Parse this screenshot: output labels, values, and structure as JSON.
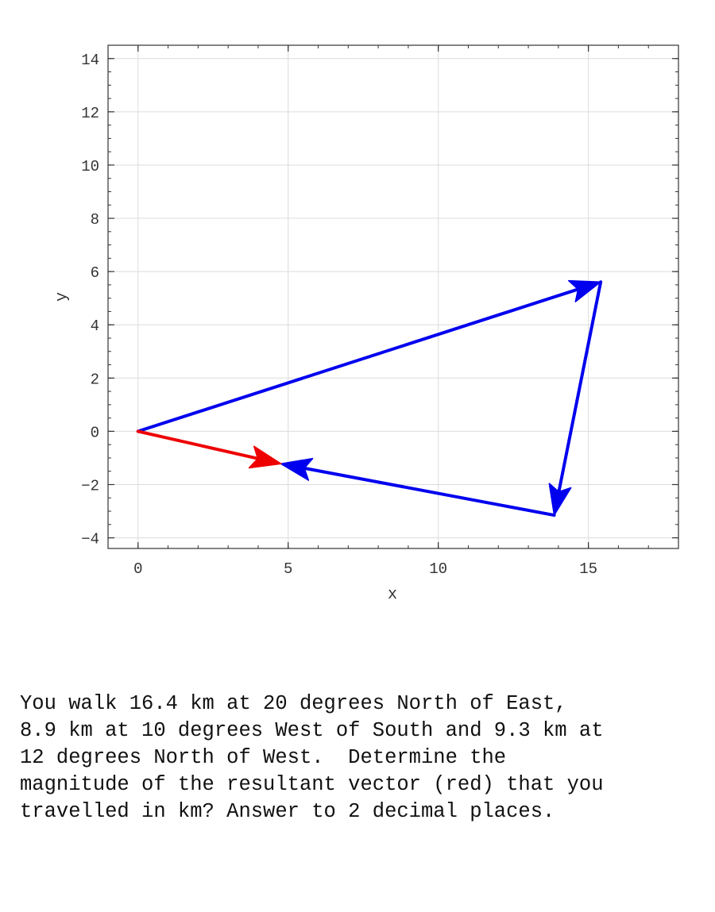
{
  "chart_data": {
    "type": "line",
    "xlabel": "x",
    "ylabel": "y",
    "xlim": [
      -1,
      18
    ],
    "ylim": [
      -4.4,
      14.5
    ],
    "x_ticks": [
      0,
      5,
      10,
      15
    ],
    "y_ticks": [
      -4,
      -2,
      0,
      2,
      4,
      6,
      8,
      10,
      12,
      14
    ],
    "x_tick_labels": [
      "0",
      "5",
      "10",
      "15"
    ],
    "y_tick_labels": [
      "−4",
      "−2",
      "0",
      "2",
      "4",
      "6",
      "8",
      "10",
      "12",
      "14"
    ],
    "grid": true,
    "vectors": [
      {
        "from": [
          0,
          0
        ],
        "to": [
          15.41,
          5.61
        ],
        "color": "#0000ee"
      },
      {
        "from": [
          15.41,
          5.61
        ],
        "to": [
          13.86,
          -3.15
        ],
        "color": "#0000ee"
      },
      {
        "from": [
          13.86,
          -3.15
        ],
        "to": [
          4.76,
          -1.22
        ],
        "color": "#0000ee"
      },
      {
        "from": [
          0,
          0
        ],
        "to": [
          4.76,
          -1.22
        ],
        "color": "#ee0000"
      }
    ]
  },
  "question": {
    "lines": [
      "You walk 16.4 km at 20 degrees North of East,",
      "8.9 km at 10 degrees West of South and 9.3 km at",
      "12 degrees North of West.  Determine the",
      "magnitude of the resultant vector (red) that you",
      "travelled in km? Answer to 2 decimal places."
    ]
  }
}
